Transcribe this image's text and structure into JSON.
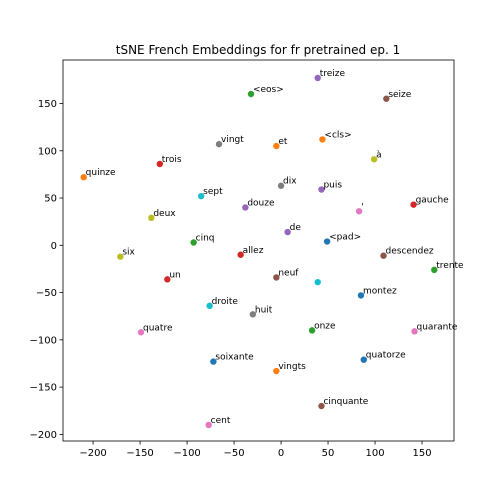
{
  "chart_data": {
    "type": "scatter",
    "title": "tSNE French Embeddings for fr pretrained ep. 1",
    "xlabel": "",
    "ylabel": "",
    "xlim": [
      -232,
      184
    ],
    "ylim": [
      -207,
      196
    ],
    "xticks": [
      -200,
      -150,
      -100,
      -50,
      0,
      50,
      100,
      150
    ],
    "yticks": [
      -200,
      -150,
      -100,
      -50,
      0,
      50,
      100,
      150
    ],
    "grid": false,
    "points": [
      {
        "label": "treize",
        "x": 39,
        "y": 177,
        "color": "#9467bd"
      },
      {
        "label": "seize",
        "x": 112,
        "y": 155,
        "color": "#8c564b"
      },
      {
        "label": "<eos>",
        "x": -32,
        "y": 160,
        "color": "#2ca02c"
      },
      {
        "label": "<cls>",
        "x": 44,
        "y": 112,
        "color": "#ff7f0e"
      },
      {
        "label": "vingt",
        "x": -66,
        "y": 107,
        "color": "#7f7f7f"
      },
      {
        "label": "et",
        "x": -5,
        "y": 105,
        "color": "#ff7f0e"
      },
      {
        "label": "à",
        "x": 99,
        "y": 91,
        "color": "#bcbd22"
      },
      {
        "label": "trois",
        "x": -129,
        "y": 86,
        "color": "#d62728"
      },
      {
        "label": "quinze",
        "x": -210,
        "y": 72,
        "color": "#ff7f0e"
      },
      {
        "label": "dix",
        "x": 0,
        "y": 63,
        "color": "#7f7f7f"
      },
      {
        "label": "puis",
        "x": 43,
        "y": 59,
        "color": "#9467bd"
      },
      {
        "label": "sept",
        "x": -85,
        "y": 52,
        "color": "#17becf"
      },
      {
        "label": "gauche",
        "x": 141,
        "y": 43,
        "color": "#d62728"
      },
      {
        "label": "douze",
        "x": -38,
        "y": 40,
        "color": "#9467bd"
      },
      {
        "label": "'",
        "x": 83,
        "y": 36,
        "color": "#e377c2"
      },
      {
        "label": "deux",
        "x": -138,
        "y": 29,
        "color": "#bcbd22"
      },
      {
        "label": "de",
        "x": 7,
        "y": 14,
        "color": "#9467bd"
      },
      {
        "label": "<pad>",
        "x": 49,
        "y": 4,
        "color": "#1f77b4"
      },
      {
        "label": "cinq",
        "x": -93,
        "y": 3,
        "color": "#2ca02c"
      },
      {
        "label": "allez",
        "x": -43,
        "y": -10,
        "color": "#d62728"
      },
      {
        "label": "six",
        "x": -171,
        "y": -12,
        "color": "#bcbd22"
      },
      {
        "label": "descendez",
        "x": 109,
        "y": -11,
        "color": "#8c564b"
      },
      {
        "label": "trente",
        "x": 163,
        "y": -26,
        "color": "#2ca02c"
      },
      {
        "label": "neuf",
        "x": -5,
        "y": -34,
        "color": "#8c564b"
      },
      {
        "label": "un",
        "x": -121,
        "y": -36,
        "color": "#d62728"
      },
      {
        "label": "",
        "x": 39,
        "y": -39,
        "color": "#17becf"
      },
      {
        "label": "montez",
        "x": 85,
        "y": -53,
        "color": "#1f77b4"
      },
      {
        "label": "droite",
        "x": -76,
        "y": -64,
        "color": "#17becf"
      },
      {
        "label": "huit",
        "x": -30,
        "y": -73,
        "color": "#7f7f7f"
      },
      {
        "label": "quatre",
        "x": -149,
        "y": -92,
        "color": "#e377c2"
      },
      {
        "label": "onze",
        "x": 33,
        "y": -90,
        "color": "#2ca02c"
      },
      {
        "label": "quarante",
        "x": 142,
        "y": -91,
        "color": "#e377c2"
      },
      {
        "label": "soixante",
        "x": -72,
        "y": -123,
        "color": "#1f77b4"
      },
      {
        "label": "quatorze",
        "x": 88,
        "y": -121,
        "color": "#1f77b4"
      },
      {
        "label": "vingts",
        "x": -5,
        "y": -133,
        "color": "#ff7f0e"
      },
      {
        "label": "cinquante",
        "x": 43,
        "y": -170,
        "color": "#8c564b"
      },
      {
        "label": "cent",
        "x": -77,
        "y": -190,
        "color": "#e377c2"
      }
    ]
  }
}
